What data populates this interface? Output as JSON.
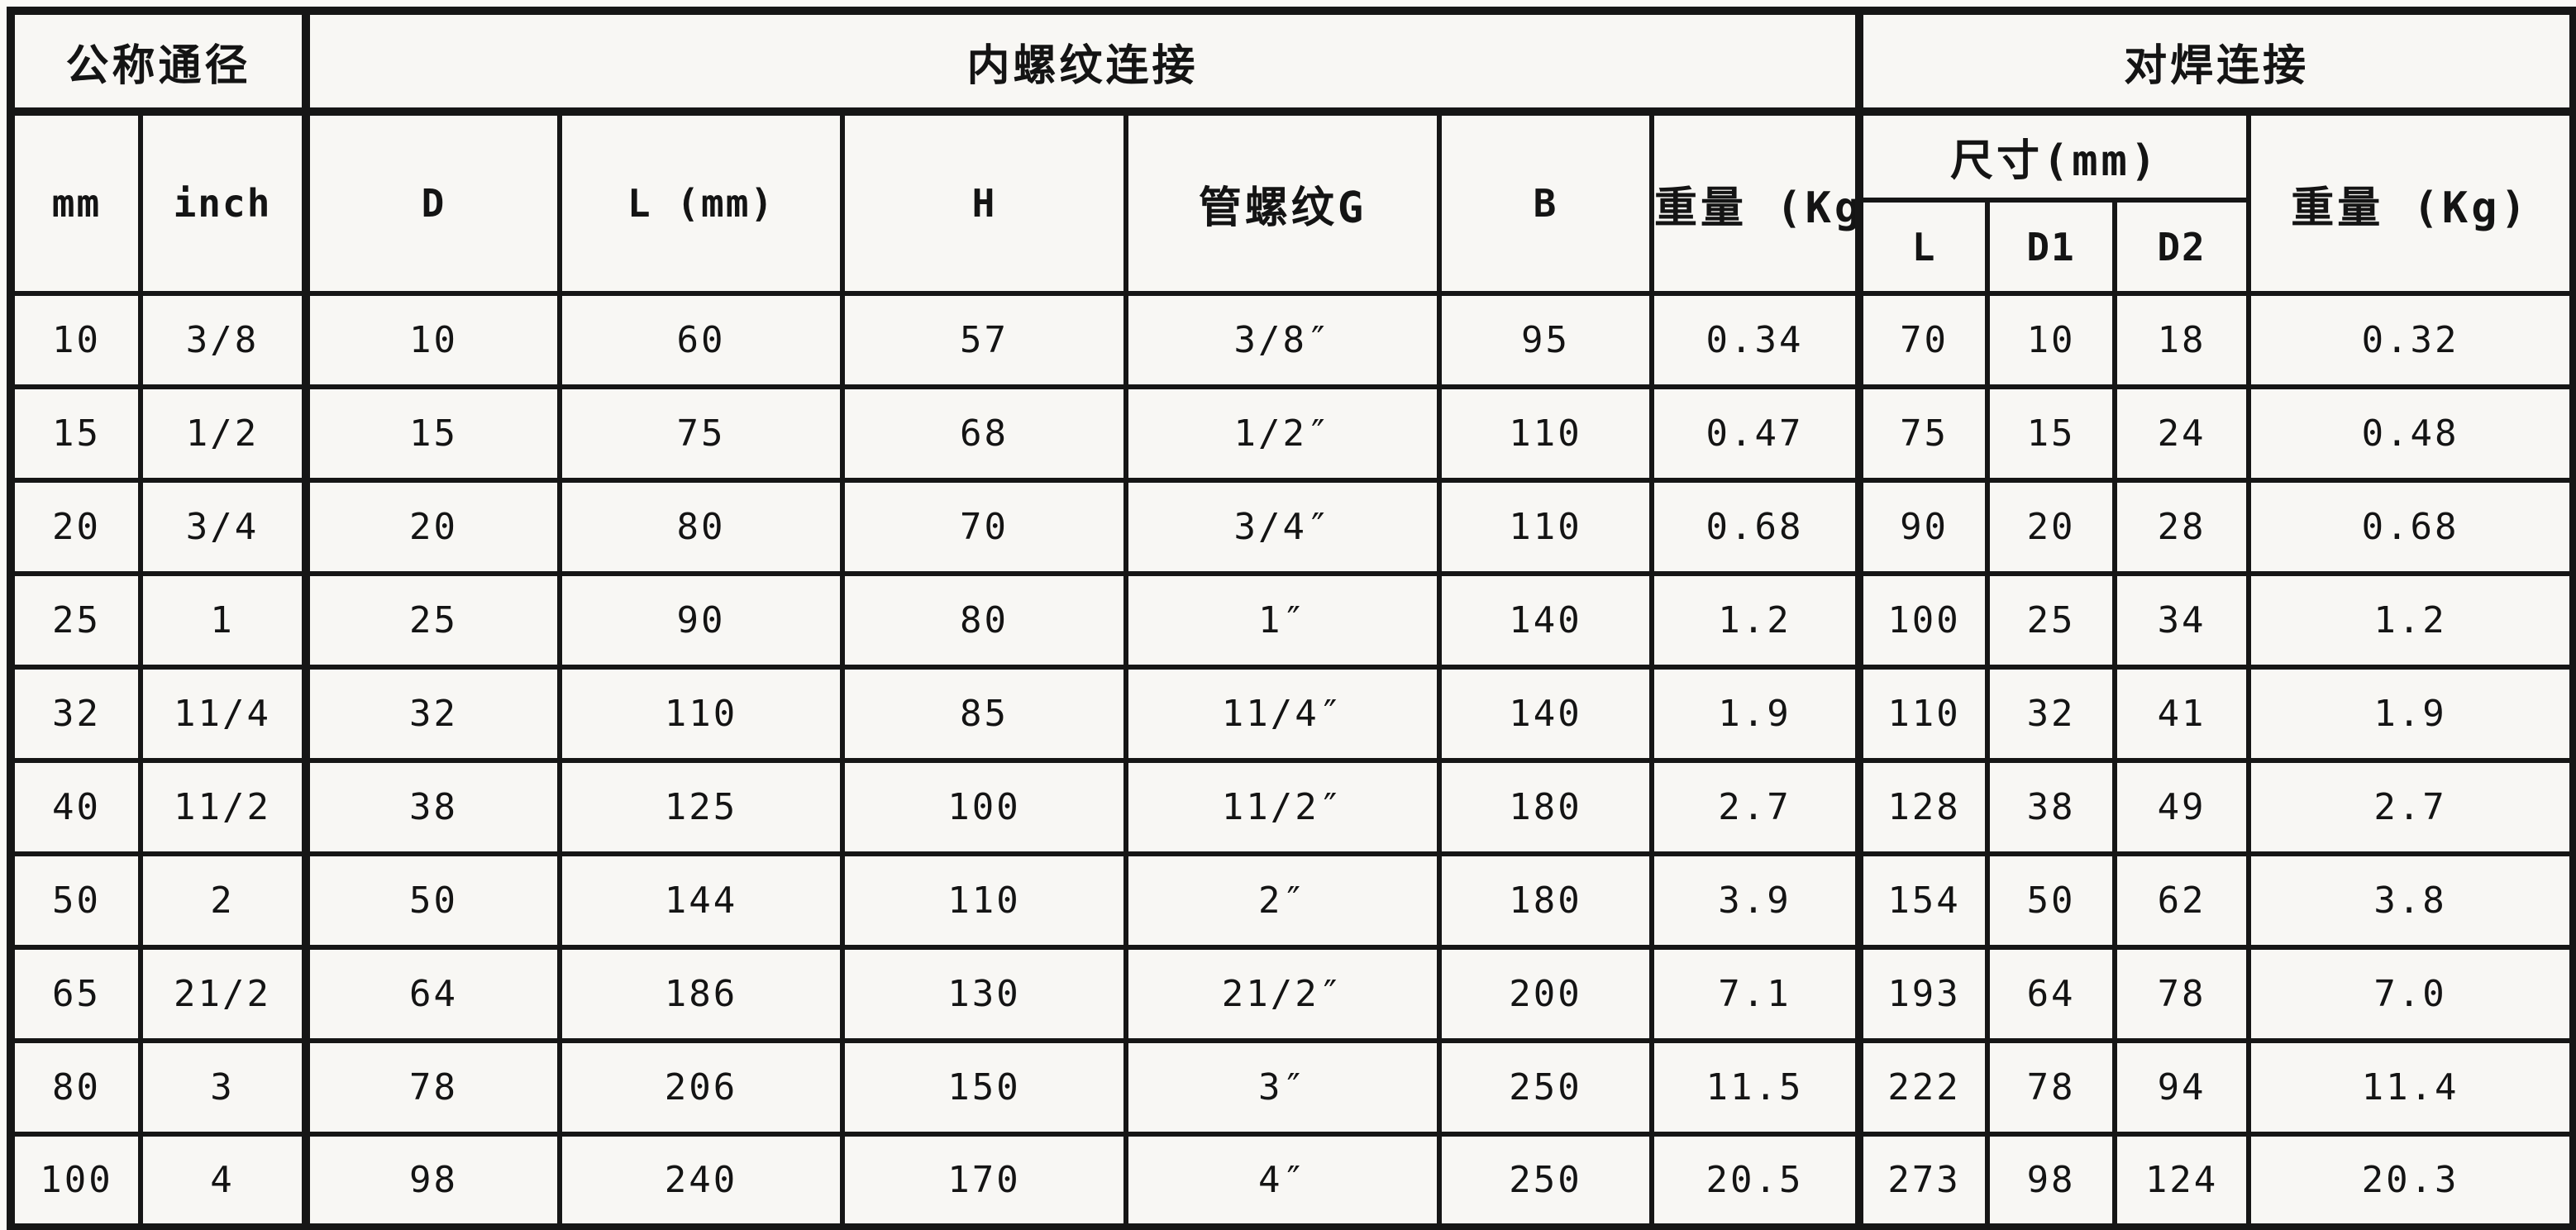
{
  "colors": {
    "background": "#f8f7f4",
    "grid_line": "#161616",
    "text": "#141414"
  },
  "table": {
    "header": {
      "nominal_diameter": "公称通径",
      "threaded_section": "内螺纹连接",
      "buttweld_section": "对焊连接",
      "col_mm": "mm",
      "col_inch": "inch",
      "col_D": "D",
      "col_L": "L (mm)",
      "col_H": "H",
      "col_G": "管螺纹G",
      "col_B": "B",
      "col_weight_threaded": "重量 (Kg)",
      "size_mm": "尺寸(mm)",
      "col_L2": "L",
      "col_D1": "D1",
      "col_D2": "D2",
      "col_weight_weld": "重量 (Kg)"
    },
    "rows": [
      [
        "10",
        "3/8",
        "10",
        "60",
        "57",
        "3/8″",
        "95",
        "0.34",
        "70",
        "10",
        "18",
        "0.32"
      ],
      [
        "15",
        "1/2",
        "15",
        "75",
        "68",
        "1/2″",
        "110",
        "0.47",
        "75",
        "15",
        "24",
        "0.48"
      ],
      [
        "20",
        "3/4",
        "20",
        "80",
        "70",
        "3/4″",
        "110",
        "0.68",
        "90",
        "20",
        "28",
        "0.68"
      ],
      [
        "25",
        "1",
        "25",
        "90",
        "80",
        "1″",
        "140",
        "1.2",
        "100",
        "25",
        "34",
        "1.2"
      ],
      [
        "32",
        "11/4",
        "32",
        "110",
        "85",
        "11/4″",
        "140",
        "1.9",
        "110",
        "32",
        "41",
        "1.9"
      ],
      [
        "40",
        "11/2",
        "38",
        "125",
        "100",
        "11/2″",
        "180",
        "2.7",
        "128",
        "38",
        "49",
        "2.7"
      ],
      [
        "50",
        "2",
        "50",
        "144",
        "110",
        "2″",
        "180",
        "3.9",
        "154",
        "50",
        "62",
        "3.8"
      ],
      [
        "65",
        "21/2",
        "64",
        "186",
        "130",
        "21/2″",
        "200",
        "7.1",
        "193",
        "64",
        "78",
        "7.0"
      ],
      [
        "80",
        "3",
        "78",
        "206",
        "150",
        "3″",
        "250",
        "11.5",
        "222",
        "78",
        "94",
        "11.4"
      ],
      [
        "100",
        "4",
        "98",
        "240",
        "170",
        "4″",
        "250",
        "20.5",
        "273",
        "98",
        "124",
        "20.3"
      ]
    ]
  }
}
